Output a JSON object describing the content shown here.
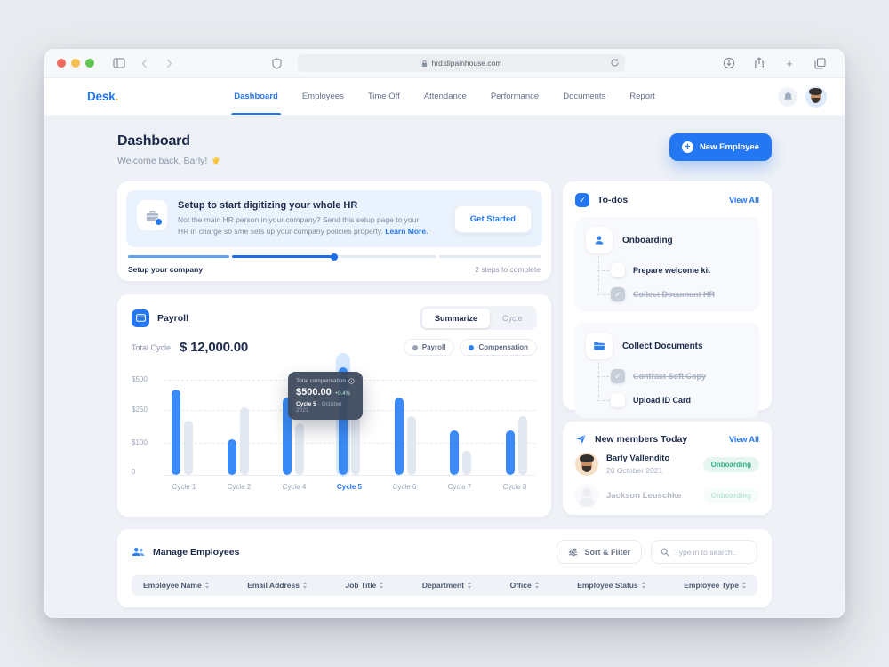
{
  "colors": {
    "accent": "#2377F2",
    "navy": "#1C2A4A",
    "muted": "#8E97AB",
    "bar_blue": "#3A8BF7",
    "bar_gray": "#E2E8F0",
    "badge_green_text": "#2FB183",
    "badge_green_bg": "#E4F6EF"
  },
  "browser": {
    "url": "hrd.dipainhouse.com"
  },
  "nav": {
    "logo": "Desk",
    "logo_dot": ".",
    "items": [
      {
        "label": "Dashboard",
        "active": true
      },
      {
        "label": "Employees",
        "active": false
      },
      {
        "label": "Time Off",
        "active": false
      },
      {
        "label": "Attendance",
        "active": false
      },
      {
        "label": "Performance",
        "active": false
      },
      {
        "label": "Documents",
        "active": false
      },
      {
        "label": "Report",
        "active": false
      }
    ]
  },
  "page_header": {
    "title": "Dashboard",
    "subtitle": "Welcome back, Barly!",
    "subtitle_emoji": "👋",
    "new_employee_button": "New Employee"
  },
  "setup_card": {
    "title": "Setup to start digitizing your whole HR",
    "body_line1": "Not the main HR person in your company? Send this setup page to your",
    "body_line2": "HR in charge so s/he sets up your company policies property.",
    "learn_more_link": "Learn More.",
    "get_started_button": "Get Started",
    "progress_label": "Setup your company",
    "progress_status": "2 steps to complete",
    "progress_segments": 4,
    "progress_completed_segments": 2
  },
  "payroll_card": {
    "title": "Payroll",
    "toggle_options": [
      "Summarize",
      "Cycle"
    ],
    "toggle_active": "Summarize",
    "total_label": "Total Cycle",
    "total_value": "$ 12,000.00",
    "legend": [
      {
        "label": "Payroll",
        "color": "#98A2B3"
      },
      {
        "label": "Compensation",
        "color": "#2F80ED"
      }
    ]
  },
  "chart_data": {
    "type": "bar",
    "title": "Payroll",
    "categories": [
      "Cycle 1",
      "Cycle 2",
      "Cycle 4",
      "Cycle 5",
      "Cycle 6",
      "Cycle 7",
      "Cycle 8"
    ],
    "series": [
      {
        "name": "Compensation",
        "color": "#3A8BF7",
        "values": [
          420,
          115,
          350,
          500,
          350,
          155,
          155
        ]
      },
      {
        "name": "Payroll",
        "color": "#E2E8F0",
        "values": [
          200,
          270,
          190,
          215,
          220,
          75,
          220
        ]
      }
    ],
    "ytick_labels": [
      "$500",
      "$250",
      "$100",
      "0"
    ],
    "ytick_values": [
      500,
      250,
      100,
      0
    ],
    "axis_pct": [
      [
        0,
        0
      ],
      [
        100,
        30.7
      ],
      [
        250,
        61.9
      ],
      [
        500,
        90.7
      ]
    ],
    "ylim": [
      0,
      500
    ],
    "grid": true,
    "legend_position": "top-right",
    "highlighted_category": "Cycle 5",
    "tooltip": {
      "title": "Total compensation",
      "value": "$500.00",
      "delta": "+0.4%",
      "cycle": "Cycle 5",
      "separator": "·",
      "date": "October 2021"
    }
  },
  "todos_card": {
    "title": "To-dos",
    "view_all": "View All",
    "groups": [
      {
        "title": "Onboarding",
        "icon": "person-icon",
        "items": [
          {
            "label": "Prepare welcome kit",
            "done": false
          },
          {
            "label": "Collect Document HR",
            "done": true
          }
        ]
      },
      {
        "title": "Collect Documents",
        "icon": "folder-icon",
        "items": [
          {
            "label": "Contract Soft Copy",
            "done": true
          },
          {
            "label": "Upload ID Card",
            "done": false
          }
        ]
      }
    ]
  },
  "new_members_card": {
    "title": "New members Today",
    "view_all": "View All",
    "members": [
      {
        "name": "Barly Vallendito",
        "date": "20 October 2021",
        "badge": "Onboarding",
        "faded": false
      },
      {
        "name": "Jackson Leuschke",
        "badge": "Onboarding",
        "faded": true
      }
    ]
  },
  "manage_card": {
    "title": "Manage Employees",
    "sort_filter_button": "Sort & Filter",
    "search_placeholder": "Type in to search..",
    "columns": [
      "Employee Name",
      "Email Address",
      "Job Title",
      "Department",
      "Office",
      "Employee Status",
      "Employee Type"
    ]
  }
}
